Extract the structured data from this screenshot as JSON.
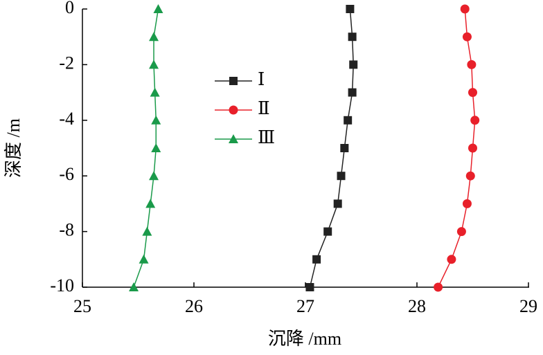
{
  "chart_data": {
    "type": "line",
    "x_label": "沉降 /mm",
    "y_label": "深度 /m",
    "xlim": [
      25,
      29
    ],
    "xticks": [
      25,
      26,
      27,
      28,
      29
    ],
    "ylim": [
      -10,
      0
    ],
    "yticks": [
      0,
      -2,
      -4,
      -6,
      -8,
      -10
    ],
    "legend": "upper center",
    "series": [
      {
        "name": "Ⅰ",
        "color": "#222222",
        "marker": "square",
        "x": [
          27.4,
          27.42,
          27.43,
          27.42,
          27.38,
          27.35,
          27.32,
          27.29,
          27.2,
          27.1,
          27.04
        ],
        "y": [
          0,
          -1,
          -2,
          -3,
          -4,
          -5,
          -6,
          -7,
          -8,
          -9,
          -10
        ]
      },
      {
        "name": "Ⅱ",
        "color": "#e8202a",
        "marker": "circle",
        "x": [
          28.43,
          28.45,
          28.49,
          28.5,
          28.52,
          28.5,
          28.48,
          28.45,
          28.4,
          28.31,
          28.19
        ],
        "y": [
          0,
          -1,
          -2,
          -3,
          -4,
          -5,
          -6,
          -7,
          -8,
          -9,
          -10
        ]
      },
      {
        "name": "Ⅲ",
        "color": "#1a9a4a",
        "marker": "triangle",
        "x": [
          25.68,
          25.64,
          25.64,
          25.65,
          25.66,
          25.66,
          25.64,
          25.61,
          25.58,
          25.55,
          25.46
        ],
        "y": [
          0,
          -1,
          -2,
          -3,
          -4,
          -5,
          -6,
          -7,
          -8,
          -9,
          -10
        ]
      }
    ]
  }
}
